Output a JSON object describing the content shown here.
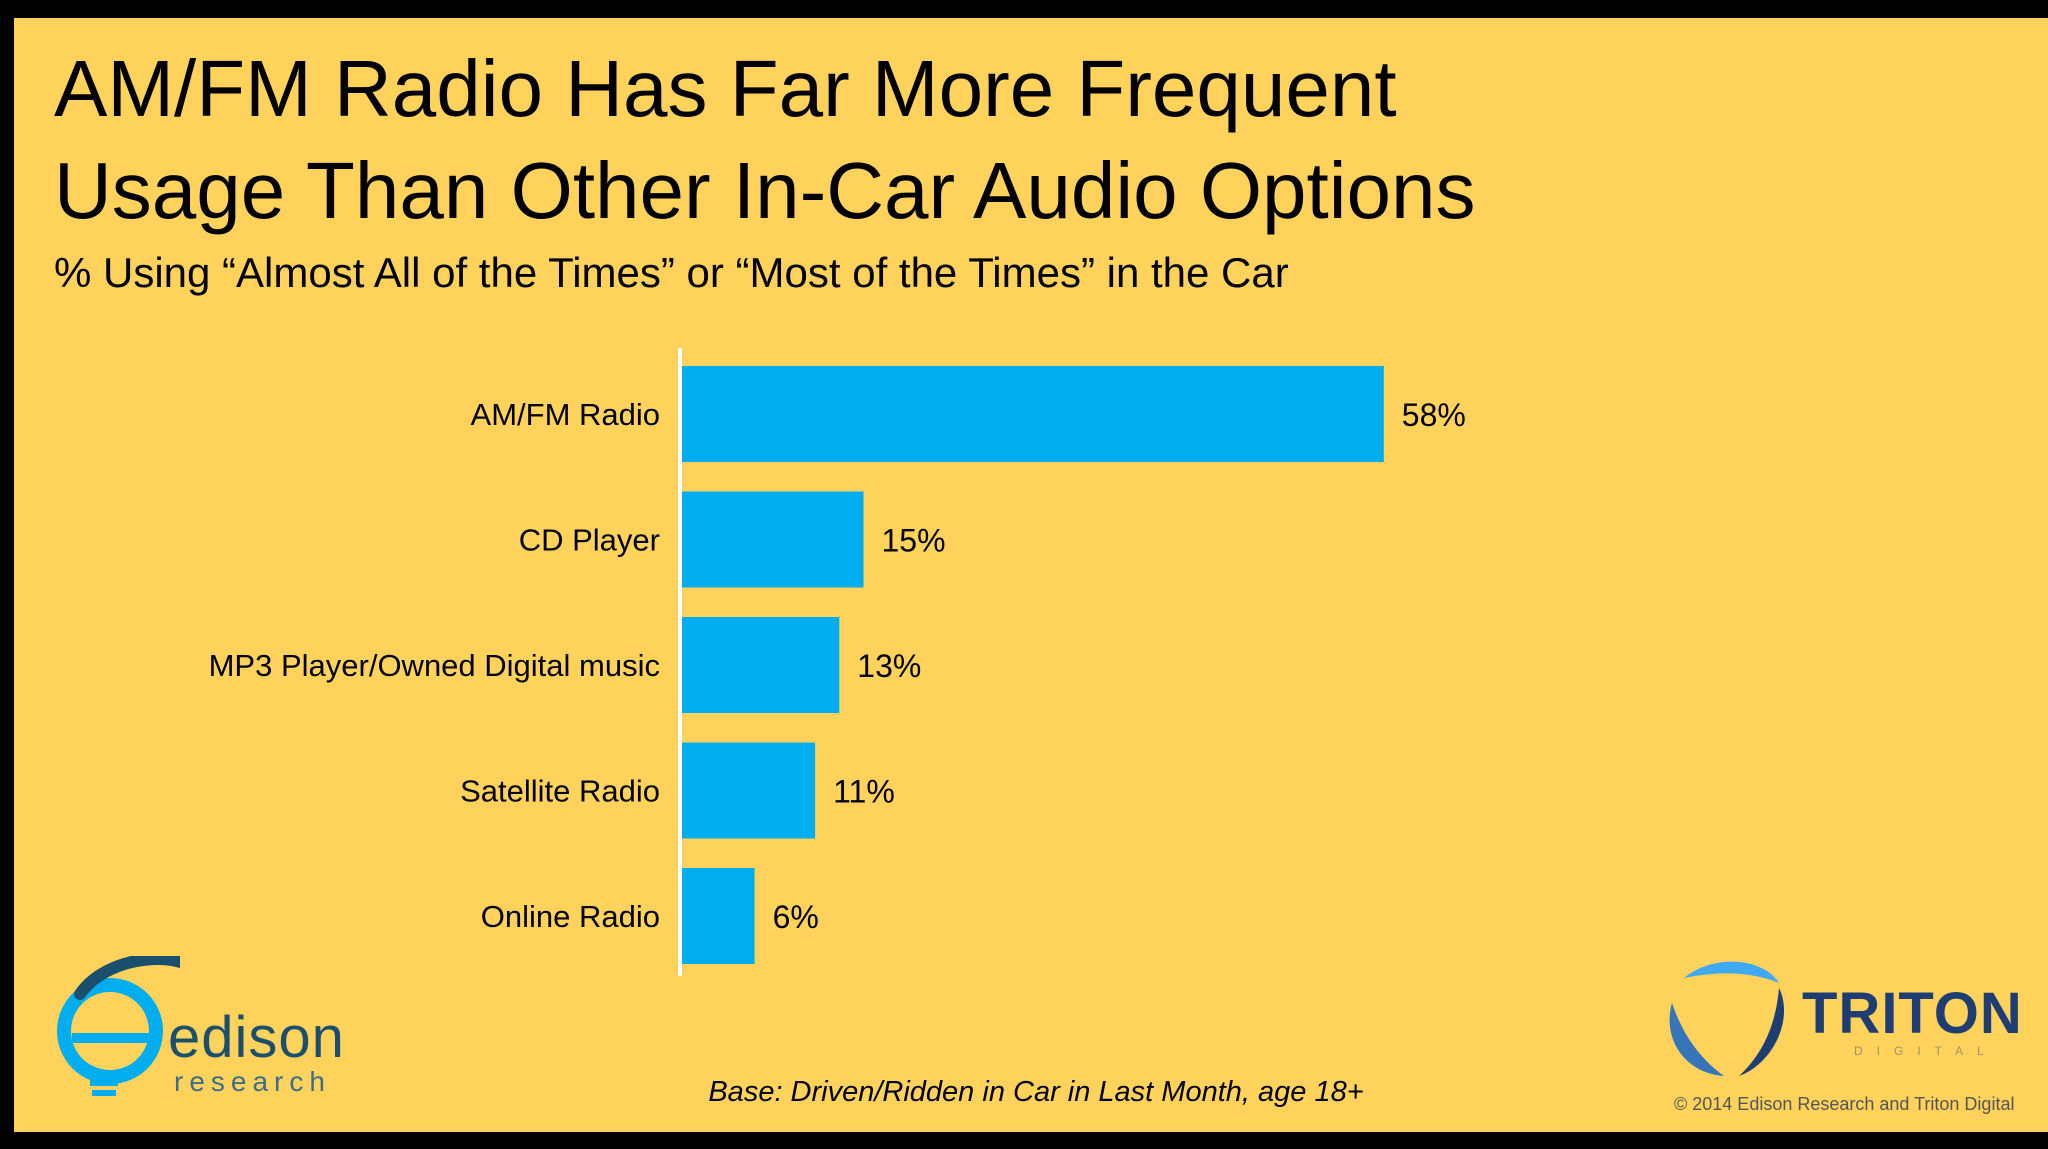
{
  "title_lines": [
    "AM/FM Radio Has Far More Frequent",
    "Usage Than Other In-Car Audio Options"
  ],
  "subtitle": "% Using “Almost All of the Times” or “Most of the Times” in the Car",
  "chart_data": {
    "type": "bar",
    "orientation": "horizontal",
    "title": "",
    "xlabel": "",
    "ylabel": "",
    "categories": [
      "AM/FM Radio",
      "CD Player",
      "MP3 Player/Owned Digital music",
      "Satellite Radio",
      "Online Radio"
    ],
    "values": [
      58,
      15,
      13,
      11,
      6
    ],
    "data_labels": [
      "58%",
      "15%",
      "13%",
      "11%",
      "6%"
    ],
    "xlim": [
      0,
      100
    ],
    "bar_color": "#00AEEF",
    "grid": false,
    "legend": "none"
  },
  "footnote": "Base: Driven/Ridden in Car in Last Month, age 18+",
  "copyright": "© 2014 Edison Research and Triton Digital",
  "logos": {
    "edison": {
      "word": "edison",
      "sub": "research",
      "icon": "edison-bulb-icon"
    },
    "triton": {
      "word": "TRITON",
      "sub": "DIGITAL",
      "icon": "triton-swirl-icon"
    }
  },
  "colors": {
    "background": "#FFD25C",
    "frame": "#000000",
    "bar": "#00AEEF",
    "edison_blue": "#1A4F6E",
    "triton_navy": "#1E3D73"
  }
}
